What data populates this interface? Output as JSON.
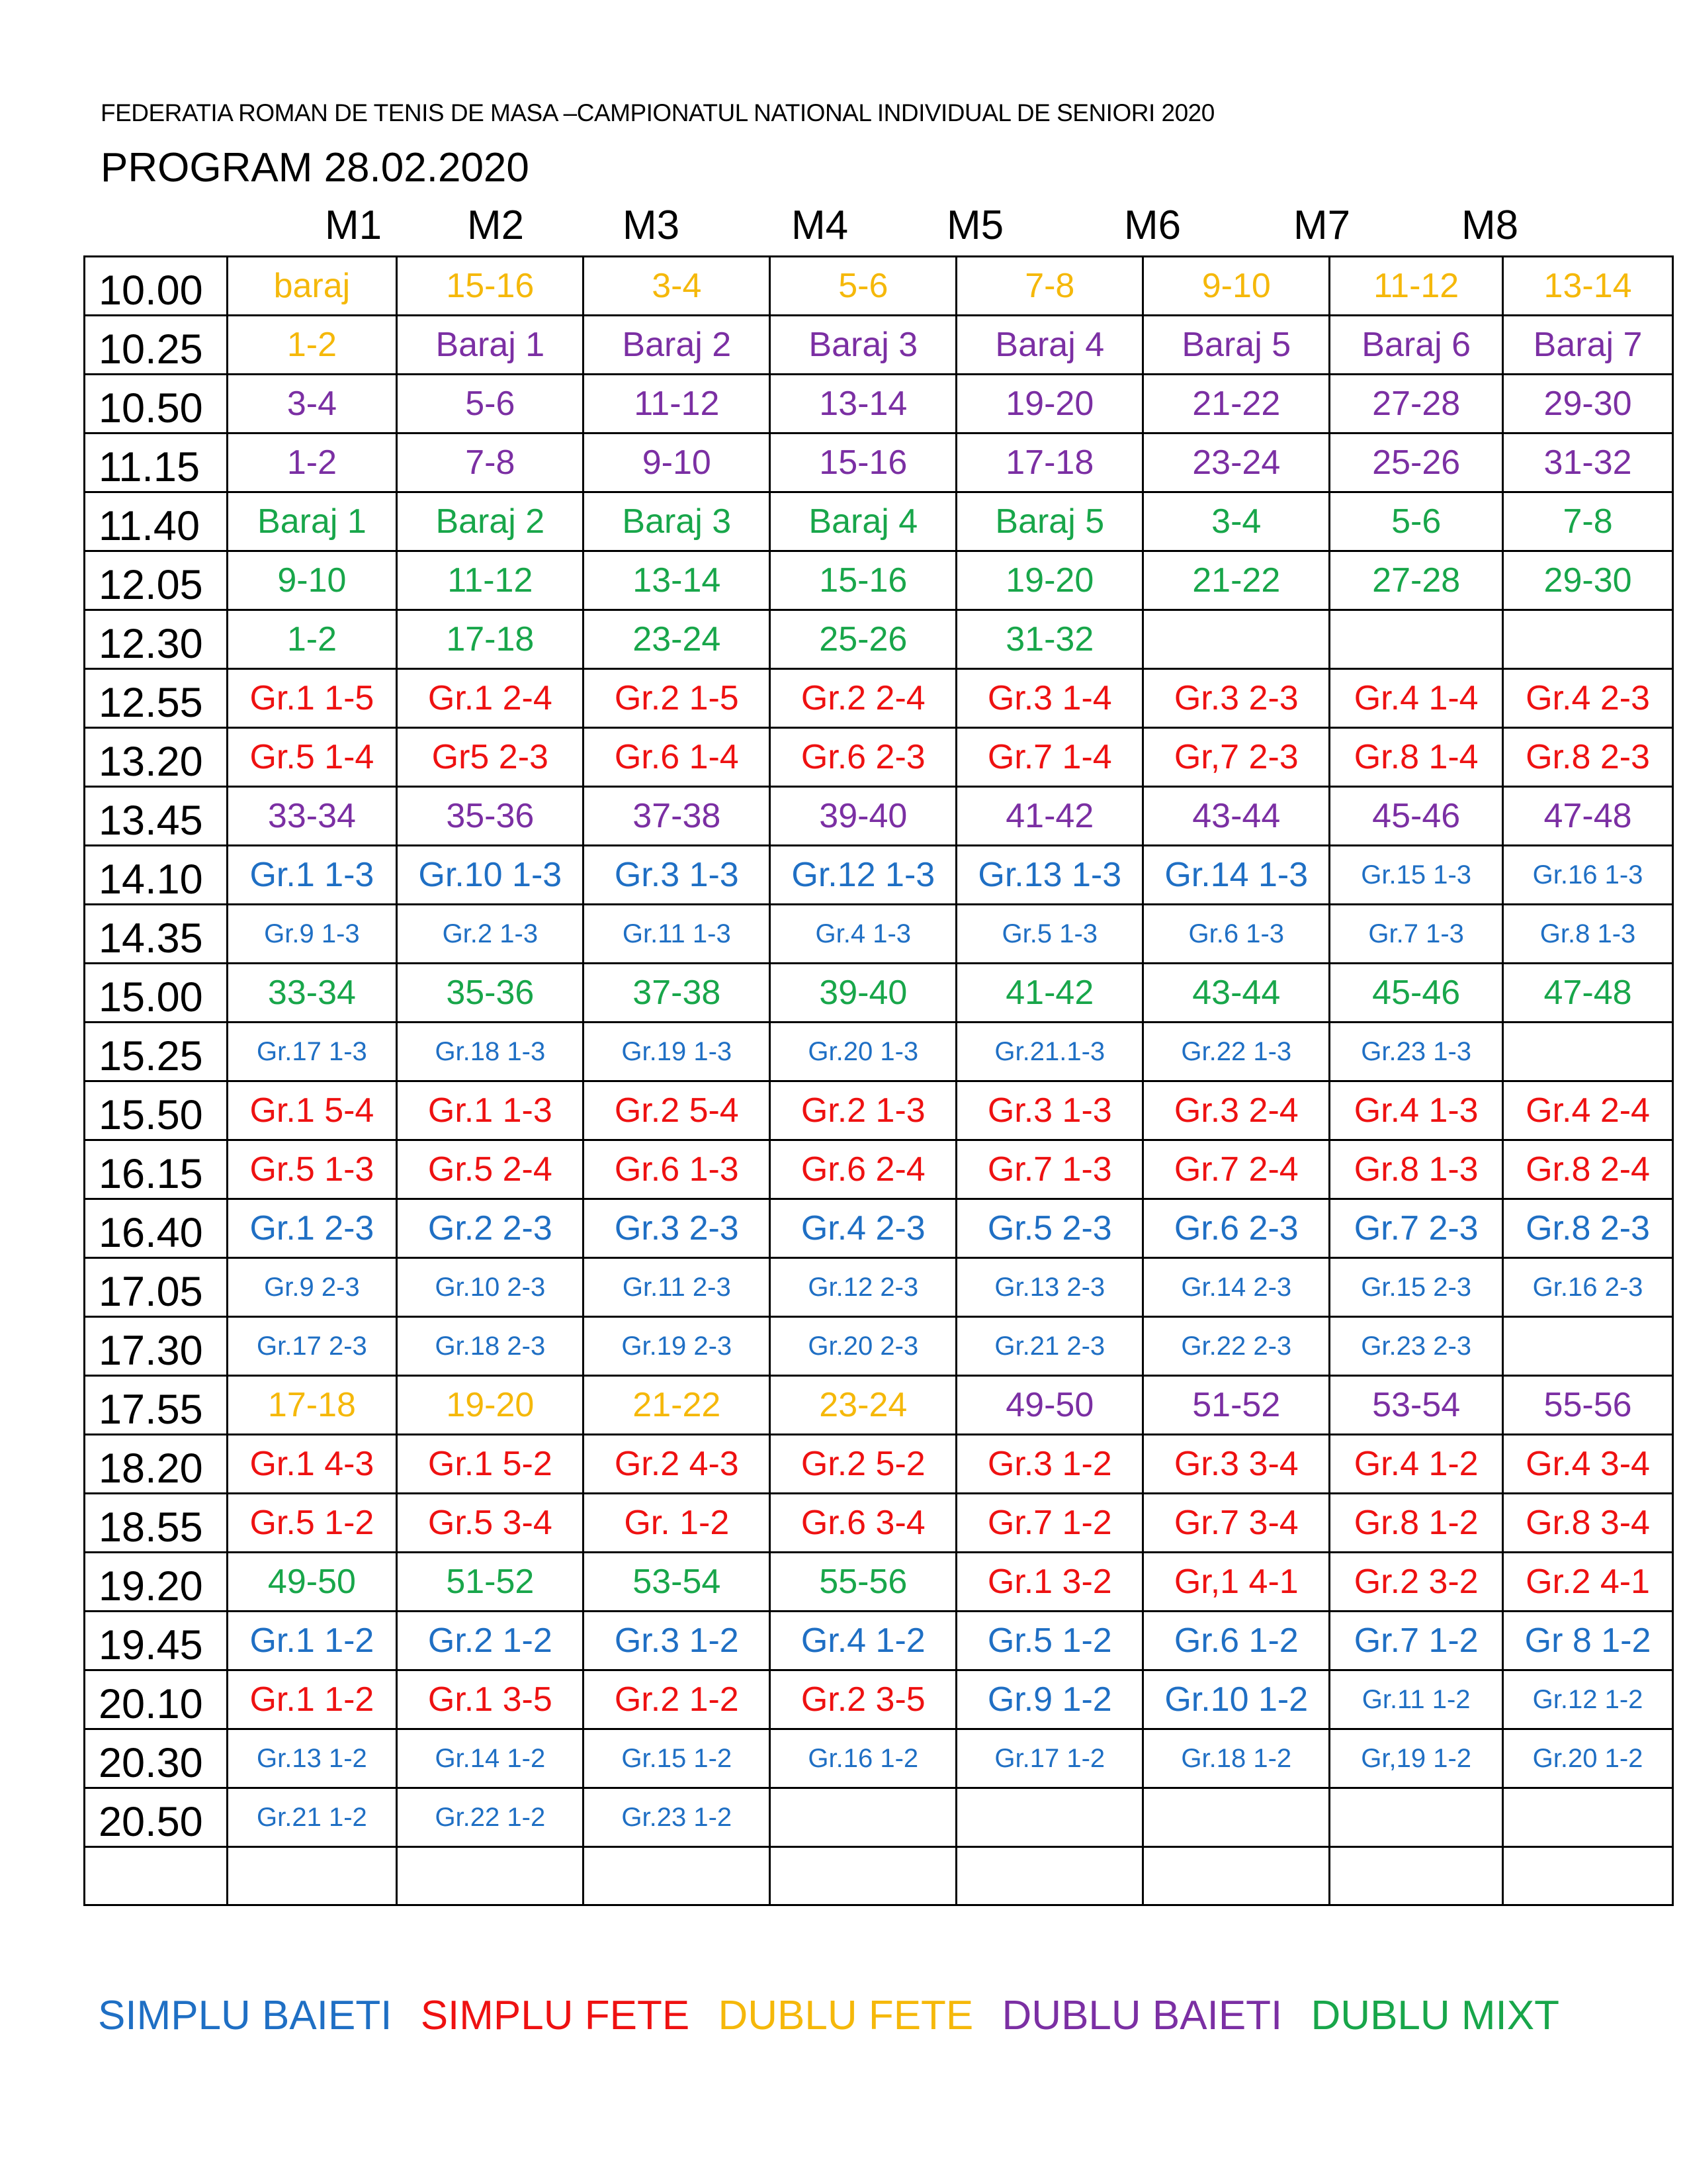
{
  "header": {
    "federation": "FEDERATIA ROMAN DE TENIS DE MASA –CAMPIONATUL NATIONAL INDIVIDUAL DE SENIORI 2020",
    "program": "PROGRAM 28.02.2020"
  },
  "columns": [
    "M1",
    "M2",
    "M3",
    "M4",
    "M5",
    "M6",
    "M7",
    "M8"
  ],
  "colors": {
    "simplu_baieti": "#1f6fc4",
    "simplu_fete": "#ee1111",
    "dublu_fete": "#f5b80a",
    "dublu_baieti": "#7b2fa3",
    "dublu_mixt": "#18a64a"
  },
  "legend": {
    "simplu_baieti": "SIMPLU BAIETI",
    "simplu_fete": "SIMPLU FETE",
    "dublu_fete": "DUBLU FETE",
    "dublu_baieti": "DUBLU BAIETI",
    "dublu_mixt": "DUBLU MIXT"
  },
  "rows": [
    {
      "time": "10.00",
      "cells": [
        {
          "t": "baraj",
          "c": "df"
        },
        {
          "t": "15-16",
          "c": "df"
        },
        {
          "t": "3-4",
          "c": "df"
        },
        {
          "t": "5-6",
          "c": "df"
        },
        {
          "t": "7-8",
          "c": "df"
        },
        {
          "t": "9-10",
          "c": "df"
        },
        {
          "t": "11-12",
          "c": "df"
        },
        {
          "t": "13-14",
          "c": "df"
        }
      ]
    },
    {
      "time": "10.25",
      "cells": [
        {
          "t": "1-2",
          "c": "df"
        },
        {
          "t": "Baraj 1",
          "c": "db"
        },
        {
          "t": "Baraj 2",
          "c": "db"
        },
        {
          "t": "Baraj 3",
          "c": "db"
        },
        {
          "t": "Baraj 4",
          "c": "db"
        },
        {
          "t": "Baraj 5",
          "c": "db"
        },
        {
          "t": "Baraj 6",
          "c": "db"
        },
        {
          "t": "Baraj 7",
          "c": "db"
        }
      ]
    },
    {
      "time": "10.50",
      "cells": [
        {
          "t": "3-4",
          "c": "db"
        },
        {
          "t": "5-6",
          "c": "db"
        },
        {
          "t": "11-12",
          "c": "db"
        },
        {
          "t": "13-14",
          "c": "db"
        },
        {
          "t": "19-20",
          "c": "db"
        },
        {
          "t": "21-22",
          "c": "db"
        },
        {
          "t": "27-28",
          "c": "db"
        },
        {
          "t": "29-30",
          "c": "db"
        }
      ]
    },
    {
      "time": "11.15",
      "cells": [
        {
          "t": "1-2",
          "c": "db"
        },
        {
          "t": "7-8",
          "c": "db"
        },
        {
          "t": "9-10",
          "c": "db"
        },
        {
          "t": "15-16",
          "c": "db"
        },
        {
          "t": "17-18",
          "c": "db"
        },
        {
          "t": "23-24",
          "c": "db"
        },
        {
          "t": "25-26",
          "c": "db"
        },
        {
          "t": "31-32",
          "c": "db"
        }
      ]
    },
    {
      "time": "11.40",
      "cells": [
        {
          "t": "Baraj 1",
          "c": "dm"
        },
        {
          "t": "Baraj 2",
          "c": "dm"
        },
        {
          "t": "Baraj 3",
          "c": "dm"
        },
        {
          "t": "Baraj 4",
          "c": "dm"
        },
        {
          "t": "Baraj 5",
          "c": "dm"
        },
        {
          "t": "3-4",
          "c": "dm"
        },
        {
          "t": "5-6",
          "c": "dm"
        },
        {
          "t": "7-8",
          "c": "dm"
        }
      ]
    },
    {
      "time": "12.05",
      "cells": [
        {
          "t": "9-10",
          "c": "dm"
        },
        {
          "t": "11-12",
          "c": "dm"
        },
        {
          "t": "13-14",
          "c": "dm"
        },
        {
          "t": "15-16",
          "c": "dm"
        },
        {
          "t": "19-20",
          "c": "dm"
        },
        {
          "t": "21-22",
          "c": "dm"
        },
        {
          "t": "27-28",
          "c": "dm"
        },
        {
          "t": "29-30",
          "c": "dm"
        }
      ]
    },
    {
      "time": "12.30",
      "cells": [
        {
          "t": "1-2",
          "c": "dm"
        },
        {
          "t": "17-18",
          "c": "dm"
        },
        {
          "t": "23-24",
          "c": "dm"
        },
        {
          "t": "25-26",
          "c": "dm"
        },
        {
          "t": "31-32",
          "c": "dm"
        },
        {
          "t": "",
          "c": ""
        },
        {
          "t": "",
          "c": ""
        },
        {
          "t": "",
          "c": ""
        }
      ]
    },
    {
      "time": "12.55",
      "cells": [
        {
          "t": "Gr.1 1-5",
          "c": "sf",
          "s": 1
        },
        {
          "t": "Gr.1 2-4",
          "c": "sf",
          "s": 1
        },
        {
          "t": "Gr.2 1-5",
          "c": "sf",
          "s": 1
        },
        {
          "t": "Gr.2 2-4",
          "c": "sf",
          "s": 1
        },
        {
          "t": "Gr.3 1-4",
          "c": "sf",
          "s": 1
        },
        {
          "t": "Gr.3 2-3",
          "c": "sf",
          "s": 1
        },
        {
          "t": "Gr.4 1-4",
          "c": "sf",
          "s": 1
        },
        {
          "t": "Gr.4 2-3",
          "c": "sf",
          "s": 1
        }
      ]
    },
    {
      "time": "13.20",
      "cells": [
        {
          "t": "Gr.5 1-4",
          "c": "sf",
          "s": 1
        },
        {
          "t": "Gr5 2-3",
          "c": "sf",
          "s": 1
        },
        {
          "t": "Gr.6 1-4",
          "c": "sf",
          "s": 1
        },
        {
          "t": "Gr.6 2-3",
          "c": "sf",
          "s": 1
        },
        {
          "t": "Gr.7 1-4",
          "c": "sf",
          "s": 1
        },
        {
          "t": "Gr,7 2-3",
          "c": "sf",
          "s": 1
        },
        {
          "t": "Gr.8 1-4",
          "c": "sf",
          "s": 1
        },
        {
          "t": "Gr.8 2-3",
          "c": "sf",
          "s": 1
        }
      ]
    },
    {
      "time": "13.45",
      "cells": [
        {
          "t": "33-34",
          "c": "db"
        },
        {
          "t": "35-36",
          "c": "db"
        },
        {
          "t": "37-38",
          "c": "db"
        },
        {
          "t": "39-40",
          "c": "db"
        },
        {
          "t": "41-42",
          "c": "db"
        },
        {
          "t": "43-44",
          "c": "db"
        },
        {
          "t": "45-46",
          "c": "db"
        },
        {
          "t": "47-48",
          "c": "db"
        }
      ]
    },
    {
      "time": "14.10",
      "cells": [
        {
          "t": "Gr.1 1-3",
          "c": "sb",
          "s": 1
        },
        {
          "t": "Gr.10 1-3",
          "c": "sb",
          "s": 1
        },
        {
          "t": "Gr.3 1-3",
          "c": "sb",
          "s": 1
        },
        {
          "t": "Gr.12 1-3",
          "c": "sb",
          "s": 1
        },
        {
          "t": "Gr.13 1-3",
          "c": "sb",
          "s": 1
        },
        {
          "t": "Gr.14 1-3",
          "c": "sb",
          "s": 1
        },
        {
          "t": "Gr.15 1-3",
          "c": "sb",
          "s": 2
        },
        {
          "t": "Gr.16 1-3",
          "c": "sb",
          "s": 2
        }
      ]
    },
    {
      "time": "14.35",
      "cells": [
        {
          "t": "Gr.9 1-3",
          "c": "sb",
          "s": 2
        },
        {
          "t": "Gr.2 1-3",
          "c": "sb",
          "s": 2
        },
        {
          "t": "Gr.11 1-3",
          "c": "sb",
          "s": 2
        },
        {
          "t": "Gr.4 1-3",
          "c": "sb",
          "s": 2
        },
        {
          "t": "Gr.5 1-3",
          "c": "sb",
          "s": 2
        },
        {
          "t": "Gr.6 1-3",
          "c": "sb",
          "s": 2
        },
        {
          "t": "Gr.7 1-3",
          "c": "sb",
          "s": 2
        },
        {
          "t": "Gr.8 1-3",
          "c": "sb",
          "s": 2
        }
      ]
    },
    {
      "time": "15.00",
      "cells": [
        {
          "t": "33-34",
          "c": "dm"
        },
        {
          "t": "35-36",
          "c": "dm"
        },
        {
          "t": "37-38",
          "c": "dm"
        },
        {
          "t": "39-40",
          "c": "dm"
        },
        {
          "t": "41-42",
          "c": "dm"
        },
        {
          "t": "43-44",
          "c": "dm"
        },
        {
          "t": "45-46",
          "c": "dm"
        },
        {
          "t": "47-48",
          "c": "dm"
        }
      ]
    },
    {
      "time": "15.25",
      "cells": [
        {
          "t": "Gr.17 1-3",
          "c": "sb",
          "s": 2
        },
        {
          "t": "Gr.18 1-3",
          "c": "sb",
          "s": 2
        },
        {
          "t": "Gr.19 1-3",
          "c": "sb",
          "s": 2
        },
        {
          "t": "Gr.20 1-3",
          "c": "sb",
          "s": 2
        },
        {
          "t": "Gr.21.1-3",
          "c": "sb",
          "s": 2
        },
        {
          "t": "Gr.22 1-3",
          "c": "sb",
          "s": 2
        },
        {
          "t": "Gr.23 1-3",
          "c": "sb",
          "s": 2
        },
        {
          "t": "",
          "c": ""
        }
      ]
    },
    {
      "time": "15.50",
      "cells": [
        {
          "t": "Gr.1 5-4",
          "c": "sf",
          "s": 1
        },
        {
          "t": "Gr.1 1-3",
          "c": "sf",
          "s": 1
        },
        {
          "t": "Gr.2 5-4",
          "c": "sf",
          "s": 1
        },
        {
          "t": "Gr.2 1-3",
          "c": "sf",
          "s": 1
        },
        {
          "t": "Gr.3 1-3",
          "c": "sf",
          "s": 1
        },
        {
          "t": "Gr.3 2-4",
          "c": "sf",
          "s": 1
        },
        {
          "t": "Gr.4 1-3",
          "c": "sf",
          "s": 1
        },
        {
          "t": "Gr.4 2-4",
          "c": "sf",
          "s": 1
        }
      ]
    },
    {
      "time": "16.15",
      "cells": [
        {
          "t": "Gr.5 1-3",
          "c": "sf",
          "s": 1
        },
        {
          "t": "Gr.5 2-4",
          "c": "sf",
          "s": 1
        },
        {
          "t": "Gr.6 1-3",
          "c": "sf",
          "s": 1
        },
        {
          "t": "Gr.6 2-4",
          "c": "sf",
          "s": 1
        },
        {
          "t": "Gr.7 1-3",
          "c": "sf",
          "s": 1
        },
        {
          "t": "Gr.7 2-4",
          "c": "sf",
          "s": 1
        },
        {
          "t": "Gr.8 1-3",
          "c": "sf",
          "s": 1
        },
        {
          "t": "Gr.8 2-4",
          "c": "sf",
          "s": 1
        }
      ]
    },
    {
      "time": "16.40",
      "cells": [
        {
          "t": "Gr.1 2-3",
          "c": "sb",
          "s": 1
        },
        {
          "t": "Gr.2 2-3",
          "c": "sb",
          "s": 1
        },
        {
          "t": "Gr.3 2-3",
          "c": "sb",
          "s": 1
        },
        {
          "t": "Gr.4 2-3",
          "c": "sb",
          "s": 1
        },
        {
          "t": "Gr.5 2-3",
          "c": "sb",
          "s": 1
        },
        {
          "t": "Gr.6 2-3",
          "c": "sb",
          "s": 1
        },
        {
          "t": "Gr.7 2-3",
          "c": "sb",
          "s": 1
        },
        {
          "t": "Gr.8 2-3",
          "c": "sb",
          "s": 1
        }
      ]
    },
    {
      "time": "17.05",
      "cells": [
        {
          "t": "Gr.9 2-3",
          "c": "sb",
          "s": 2
        },
        {
          "t": "Gr.10 2-3",
          "c": "sb",
          "s": 2
        },
        {
          "t": "Gr.11 2-3",
          "c": "sb",
          "s": 2
        },
        {
          "t": "Gr.12 2-3",
          "c": "sb",
          "s": 2
        },
        {
          "t": "Gr.13 2-3",
          "c": "sb",
          "s": 2
        },
        {
          "t": "Gr.14 2-3",
          "c": "sb",
          "s": 2
        },
        {
          "t": "Gr.15 2-3",
          "c": "sb",
          "s": 2
        },
        {
          "t": "Gr.16 2-3",
          "c": "sb",
          "s": 2
        }
      ]
    },
    {
      "time": "17.30",
      "cells": [
        {
          "t": "Gr.17 2-3",
          "c": "sb",
          "s": 2
        },
        {
          "t": "Gr.18 2-3",
          "c": "sb",
          "s": 2
        },
        {
          "t": "Gr.19 2-3",
          "c": "sb",
          "s": 2
        },
        {
          "t": "Gr.20 2-3",
          "c": "sb",
          "s": 2
        },
        {
          "t": "Gr.21 2-3",
          "c": "sb",
          "s": 2
        },
        {
          "t": "Gr.22 2-3",
          "c": "sb",
          "s": 2
        },
        {
          "t": "Gr.23 2-3",
          "c": "sb",
          "s": 2
        },
        {
          "t": "",
          "c": ""
        }
      ]
    },
    {
      "time": "17.55",
      "cells": [
        {
          "t": "17-18",
          "c": "df"
        },
        {
          "t": "19-20",
          "c": "df"
        },
        {
          "t": "21-22",
          "c": "df"
        },
        {
          "t": "23-24",
          "c": "df"
        },
        {
          "t": "49-50",
          "c": "db"
        },
        {
          "t": "51-52",
          "c": "db"
        },
        {
          "t": "53-54",
          "c": "db"
        },
        {
          "t": "55-56",
          "c": "db"
        }
      ]
    },
    {
      "time": "18.20",
      "cells": [
        {
          "t": "Gr.1 4-3",
          "c": "sf",
          "s": 1
        },
        {
          "t": "Gr.1 5-2",
          "c": "sf",
          "s": 1
        },
        {
          "t": "Gr.2 4-3",
          "c": "sf",
          "s": 1
        },
        {
          "t": "Gr.2 5-2",
          "c": "sf",
          "s": 1
        },
        {
          "t": "Gr.3 1-2",
          "c": "sf",
          "s": 1
        },
        {
          "t": "Gr.3 3-4",
          "c": "sf",
          "s": 1
        },
        {
          "t": "Gr.4 1-2",
          "c": "sf",
          "s": 1
        },
        {
          "t": "Gr.4 3-4",
          "c": "sf",
          "s": 1
        }
      ]
    },
    {
      "time": "18.55",
      "cells": [
        {
          "t": "Gr.5 1-2",
          "c": "sf",
          "s": 1
        },
        {
          "t": "Gr.5 3-4",
          "c": "sf",
          "s": 1
        },
        {
          "t": "Gr. 1-2",
          "c": "sf",
          "s": 1
        },
        {
          "t": "Gr.6 3-4",
          "c": "sf",
          "s": 1
        },
        {
          "t": "Gr.7 1-2",
          "c": "sf",
          "s": 1
        },
        {
          "t": "Gr.7 3-4",
          "c": "sf",
          "s": 1
        },
        {
          "t": "Gr.8 1-2",
          "c": "sf",
          "s": 1
        },
        {
          "t": "Gr.8 3-4",
          "c": "sf",
          "s": 1
        }
      ]
    },
    {
      "time": "19.20",
      "cells": [
        {
          "t": "49-50",
          "c": "dm"
        },
        {
          "t": "51-52",
          "c": "dm"
        },
        {
          "t": "53-54",
          "c": "dm"
        },
        {
          "t": "55-56",
          "c": "dm"
        },
        {
          "t": "Gr.1 3-2",
          "c": "sf",
          "s": 1
        },
        {
          "t": "Gr,1 4-1",
          "c": "sf",
          "s": 1
        },
        {
          "t": "Gr.2 3-2",
          "c": "sf",
          "s": 1
        },
        {
          "t": "Gr.2 4-1",
          "c": "sf",
          "s": 1
        }
      ]
    },
    {
      "time": "19.45",
      "cells": [
        {
          "t": "Gr.1 1-2",
          "c": "sb",
          "s": 1
        },
        {
          "t": "Gr.2 1-2",
          "c": "sb",
          "s": 1
        },
        {
          "t": "Gr.3 1-2",
          "c": "sb",
          "s": 1
        },
        {
          "t": "Gr.4 1-2",
          "c": "sb",
          "s": 1
        },
        {
          "t": "Gr.5 1-2",
          "c": "sb",
          "s": 1
        },
        {
          "t": "Gr.6 1-2",
          "c": "sb",
          "s": 1
        },
        {
          "t": "Gr.7 1-2",
          "c": "sb",
          "s": 1
        },
        {
          "t": "Gr 8 1-2",
          "c": "sb",
          "s": 1
        }
      ]
    },
    {
      "time": "20.10",
      "cells": [
        {
          "t": "Gr.1 1-2",
          "c": "sf",
          "s": 1
        },
        {
          "t": "Gr.1 3-5",
          "c": "sf",
          "s": 1
        },
        {
          "t": "Gr.2 1-2",
          "c": "sf",
          "s": 1
        },
        {
          "t": "Gr.2 3-5",
          "c": "sf",
          "s": 1
        },
        {
          "t": "Gr.9 1-2",
          "c": "sb",
          "s": 1
        },
        {
          "t": "Gr.10 1-2",
          "c": "sb",
          "s": 1
        },
        {
          "t": "Gr.11 1-2",
          "c": "sb",
          "s": 2
        },
        {
          "t": "Gr.12 1-2",
          "c": "sb",
          "s": 2
        }
      ]
    },
    {
      "time": "20.30",
      "cells": [
        {
          "t": "Gr.13 1-2",
          "c": "sb",
          "s": 2
        },
        {
          "t": "Gr.14 1-2",
          "c": "sb",
          "s": 2
        },
        {
          "t": "Gr.15 1-2",
          "c": "sb",
          "s": 2
        },
        {
          "t": "Gr.16 1-2",
          "c": "sb",
          "s": 2
        },
        {
          "t": "Gr.17 1-2",
          "c": "sb",
          "s": 2
        },
        {
          "t": "Gr.18 1-2",
          "c": "sb",
          "s": 2
        },
        {
          "t": "Gr,19 1-2",
          "c": "sb",
          "s": 2
        },
        {
          "t": "Gr.20 1-2",
          "c": "sb",
          "s": 2
        }
      ]
    },
    {
      "time": "20.50",
      "cells": [
        {
          "t": "Gr.21 1-2",
          "c": "sb",
          "s": 2
        },
        {
          "t": "Gr.22 1-2",
          "c": "sb",
          "s": 2
        },
        {
          "t": "Gr.23 1-2",
          "c": "sb",
          "s": 2
        },
        {
          "t": "",
          "c": ""
        },
        {
          "t": "",
          "c": ""
        },
        {
          "t": "",
          "c": ""
        },
        {
          "t": "",
          "c": ""
        },
        {
          "t": "",
          "c": ""
        }
      ]
    },
    {
      "time": "",
      "cells": [
        {
          "t": "",
          "c": ""
        },
        {
          "t": "",
          "c": ""
        },
        {
          "t": "",
          "c": ""
        },
        {
          "t": "",
          "c": ""
        },
        {
          "t": "",
          "c": ""
        },
        {
          "t": "",
          "c": ""
        },
        {
          "t": "",
          "c": ""
        },
        {
          "t": "",
          "c": ""
        }
      ]
    }
  ]
}
